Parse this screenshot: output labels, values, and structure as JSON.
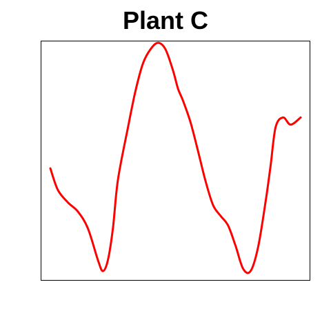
{
  "chart_data": {
    "type": "line",
    "title": "Plant C",
    "xlabel": "",
    "ylabel": "",
    "xlim": [
      0,
      1
    ],
    "ylim": [
      0.0,
      1.0
    ],
    "axes_shown": false,
    "grid": false,
    "legend": "none",
    "series": [
      {
        "color": "#ff0000",
        "x": [
          0.0,
          0.03,
          0.07,
          0.11,
          0.15,
          0.19,
          0.21,
          0.23,
          0.25,
          0.27,
          0.31,
          0.34,
          0.37,
          0.4,
          0.43,
          0.46,
          0.49,
          0.51,
          0.53,
          0.56,
          0.59,
          0.62,
          0.65,
          0.68,
          0.71,
          0.74,
          0.77,
          0.8,
          0.83,
          0.86,
          0.88,
          0.9,
          0.93,
          0.96,
          1.0
        ],
        "y": [
          0.468,
          0.378,
          0.326,
          0.288,
          0.218,
          0.086,
          0.04,
          0.086,
          0.218,
          0.42,
          0.638,
          0.79,
          0.905,
          0.964,
          0.991,
          0.964,
          0.876,
          0.8,
          0.75,
          0.66,
          0.54,
          0.415,
          0.315,
          0.27,
          0.23,
          0.145,
          0.05,
          0.04,
          0.14,
          0.33,
          0.48,
          0.64,
          0.68,
          0.65,
          0.68
        ]
      }
    ]
  }
}
